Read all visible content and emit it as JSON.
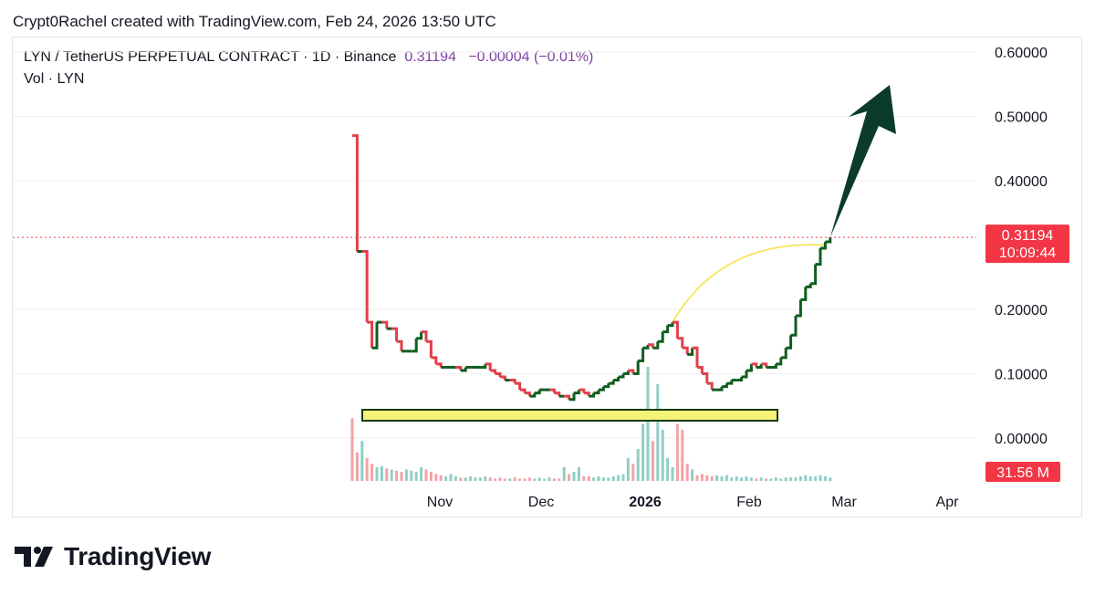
{
  "header": {
    "credit": "Crypt0Rachel created with TradingView.com, Feb 24, 2026 13:50 UTC"
  },
  "legend": {
    "symbol": "LYN / TetherUS PERPETUAL CONTRACT · 1D · Binance",
    "price": "0.31194",
    "change": "−0.00004",
    "change_pct": "(−0.01%)",
    "vol_label": "Vol · LYN"
  },
  "price_badge": {
    "price": "0.31194",
    "countdown": "10:09:44",
    "color": "#f23645"
  },
  "volume_badge": {
    "value": "31.56 M",
    "color": "#f23645"
  },
  "brand": {
    "name": "TradingView"
  },
  "colors": {
    "up": "#0f5e1f",
    "down": "#e0404a",
    "vol_up": "#8fcfc4",
    "vol_down": "#f2a3a8",
    "annotation_arrow": "#0b3b2c",
    "support_box": "#f5f27a",
    "curve": "#f5e86a"
  },
  "chart_data": {
    "type": "line",
    "title": "LYN / TetherUS PERPETUAL CONTRACT · 1D · Binance",
    "x_tick_labels": [
      "Nov",
      "Dec",
      "2026",
      "Feb",
      "Mar",
      "Apr"
    ],
    "y_tick_labels": [
      "0.60000",
      "0.50000",
      "0.40000",
      "0.20000",
      "0.10000",
      "0.00000"
    ],
    "ylim": [
      -0.06,
      0.63
    ],
    "grid": true,
    "last_price": 0.31194,
    "series": [
      {
        "values": [
          0.47,
          0.29,
          0.29,
          0.18,
          0.14,
          0.18,
          0.18,
          0.17,
          0.17,
          0.15,
          0.135,
          0.135,
          0.135,
          0.155,
          0.165,
          0.15,
          0.125,
          0.115,
          0.11,
          0.11,
          0.11,
          0.11,
          0.105,
          0.11,
          0.11,
          0.11,
          0.11,
          0.115,
          0.105,
          0.1,
          0.095,
          0.09,
          0.09,
          0.085,
          0.075,
          0.07,
          0.065,
          0.07,
          0.075,
          0.075,
          0.075,
          0.07,
          0.065,
          0.065,
          0.06,
          0.07,
          0.075,
          0.07,
          0.065,
          0.07,
          0.075,
          0.08,
          0.085,
          0.09,
          0.095,
          0.1,
          0.105,
          0.1,
          0.12,
          0.14,
          0.145,
          0.14,
          0.15,
          0.165,
          0.175,
          0.18,
          0.155,
          0.14,
          0.13,
          0.14,
          0.11,
          0.1,
          0.085,
          0.075,
          0.075,
          0.08,
          0.085,
          0.09,
          0.09,
          0.095,
          0.105,
          0.115,
          0.11,
          0.115,
          0.11,
          0.11,
          0.115,
          0.125,
          0.14,
          0.16,
          0.19,
          0.215,
          0.235,
          0.24,
          0.27,
          0.295,
          0.305,
          0.312
        ]
      }
    ],
    "volume": [
      0.55,
      0.25,
      0.35,
      0.2,
      0.15,
      0.12,
      0.13,
      0.11,
      0.1,
      0.09,
      0.08,
      0.1,
      0.09,
      0.08,
      0.12,
      0.1,
      0.08,
      0.06,
      0.05,
      0.04,
      0.06,
      0.04,
      0.03,
      0.03,
      0.04,
      0.03,
      0.03,
      0.04,
      0.03,
      0.02,
      0.03,
      0.02,
      0.02,
      0.03,
      0.02,
      0.02,
      0.03,
      0.02,
      0.03,
      0.02,
      0.03,
      0.02,
      0.02,
      0.12,
      0.06,
      0.08,
      0.12,
      0.04,
      0.04,
      0.03,
      0.04,
      0.03,
      0.03,
      0.04,
      0.05,
      0.06,
      0.2,
      0.15,
      0.28,
      0.5,
      1.0,
      0.35,
      0.85,
      0.45,
      0.2,
      0.12,
      0.5,
      0.45,
      0.15,
      0.1,
      0.05,
      0.06,
      0.05,
      0.04,
      0.05,
      0.04,
      0.05,
      0.03,
      0.04,
      0.03,
      0.04,
      0.03,
      0.02,
      0.03,
      0.02,
      0.02,
      0.03,
      0.02,
      0.03,
      0.03,
      0.03,
      0.04,
      0.05,
      0.04,
      0.04,
      0.05,
      0.04,
      0.03
    ]
  }
}
